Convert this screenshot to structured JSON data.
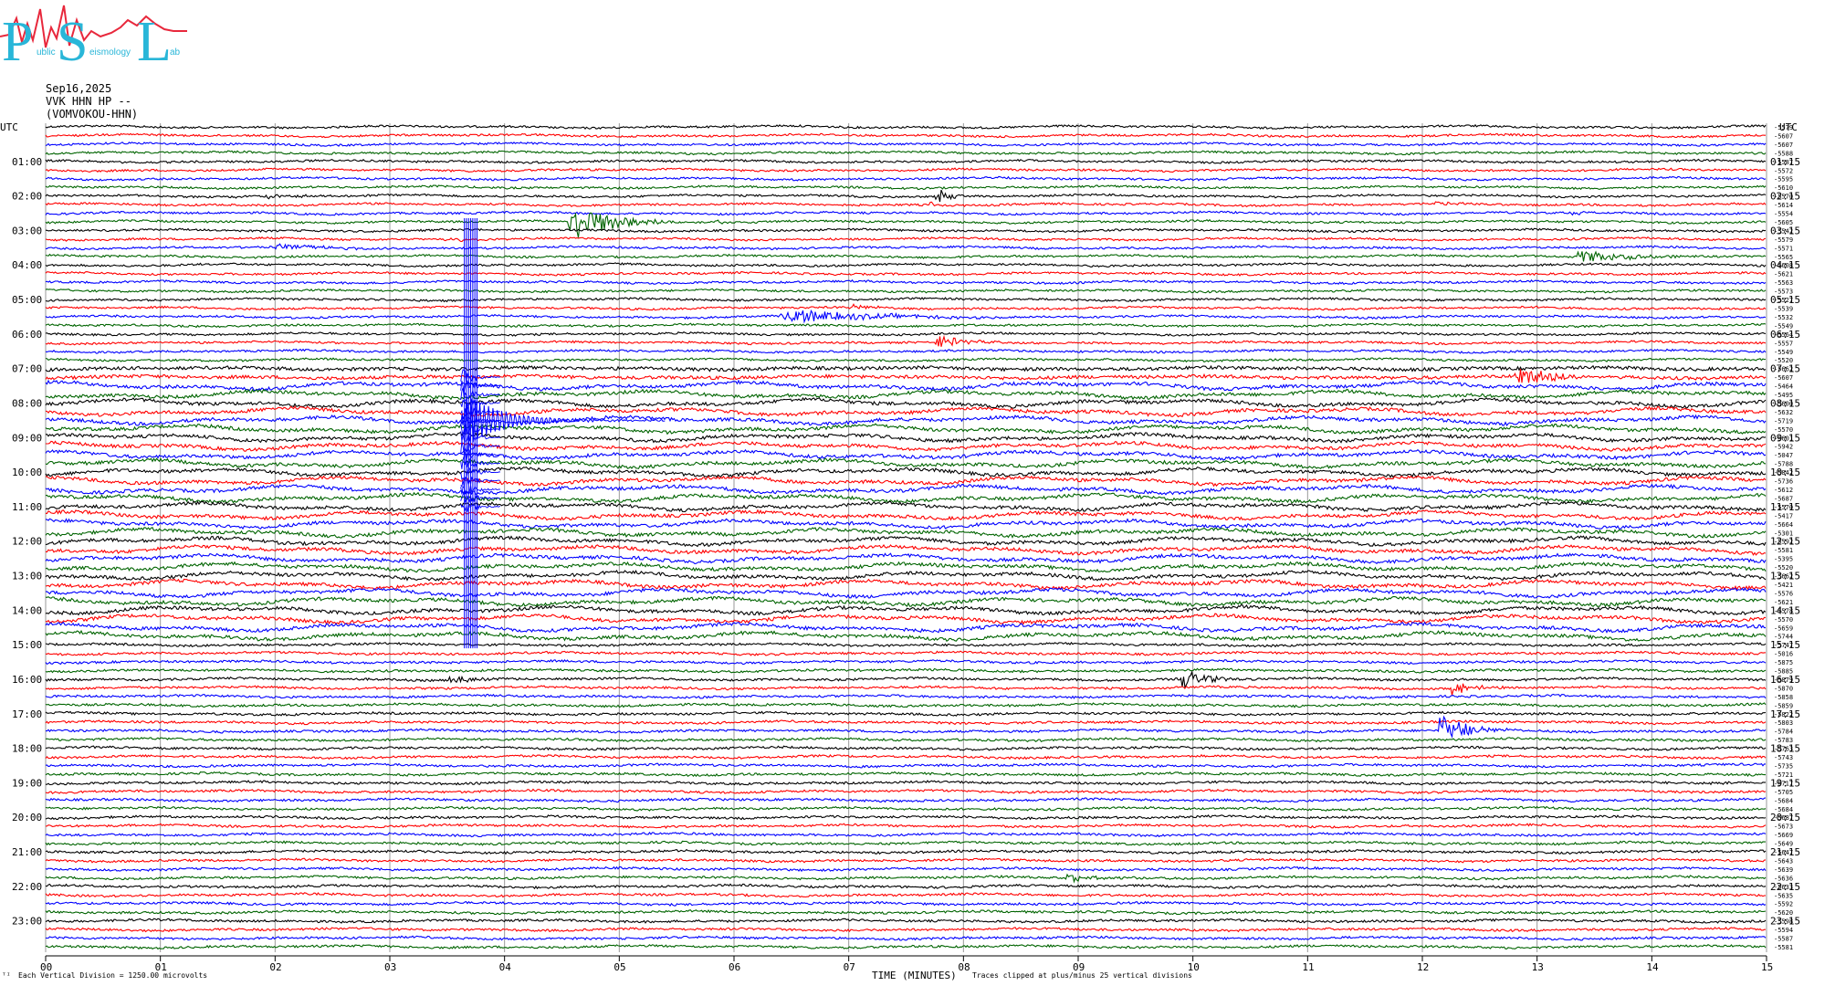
{
  "logo": {
    "big_letters": [
      "P",
      "S",
      "L"
    ],
    "small_text": [
      "ublic",
      "eismology",
      "ab"
    ],
    "colors": {
      "letters": "#29b6d8",
      "wave": "#e8283c"
    }
  },
  "header": {
    "date": "Sep16,2025",
    "channel": "VVK HHN HP --",
    "station": "(VOMVOKOU-HHN)"
  },
  "footer": {
    "corner_mark": "ᵀᴵ",
    "scale_note": "Each Vertical Division = 1250.00 microvolts",
    "xlabel": "TIME (MINUTES)",
    "clip_note": "Traces clipped at plus/minus 25 vertical divisions"
  },
  "chart_data": {
    "type": "line",
    "title": "",
    "xlabel": "TIME (MINUTES)",
    "ylabel": "",
    "xlim": [
      0,
      15
    ],
    "x_ticks": [
      "00",
      "01",
      "02",
      "03",
      "04",
      "05",
      "06",
      "07",
      "08",
      "09",
      "10",
      "11",
      "12",
      "13",
      "14",
      "15"
    ],
    "left_axis_title": "UTC",
    "right_axis_title": "UTC",
    "left_ticks": [
      "01:00",
      "02:00",
      "03:00",
      "04:00",
      "05:00",
      "06:00",
      "07:00",
      "08:00",
      "09:00",
      "10:00",
      "11:00",
      "12:00",
      "13:00",
      "14:00",
      "15:00",
      "16:00",
      "17:00",
      "18:00",
      "19:00",
      "20:00",
      "21:00",
      "22:00",
      "23:00"
    ],
    "right_ticks": [
      "01:15",
      "02:15",
      "03:15",
      "04:15",
      "05:15",
      "06:15",
      "07:15",
      "08:15",
      "09:15",
      "10:15",
      "11:15",
      "12:15",
      "13:15",
      "14:15",
      "15:15",
      "16:15",
      "17:15",
      "18:15",
      "19:15",
      "20:15",
      "21:15",
      "22:15",
      "23:15"
    ],
    "trace_colors": [
      "#000000",
      "#ff0000",
      "#0000ff",
      "#006400"
    ],
    "grid": true,
    "trace_count": 96,
    "trace_offsets": [
      "-5579",
      "-5607",
      "-5607",
      "-5588",
      "-5587",
      "-5572",
      "-5595",
      "-5610",
      "-5570",
      "-5614",
      "-5554",
      "-5605",
      "-5542",
      "-5579",
      "-5571",
      "-5565",
      "-5608",
      "-5621",
      "-5563",
      "-5573",
      "-5527",
      "-5539",
      "-5532",
      "-5549",
      "-5564",
      "-5557",
      "-5549",
      "-5520",
      "-5662",
      "-5607",
      "-5464",
      "-5495",
      "-5600",
      "-5632",
      "-5719",
      "-5570",
      "-5601",
      "-5942",
      "-5047",
      "-5788",
      "-5842",
      "-5736",
      "-5612",
      "-5687",
      "-5570",
      "-5417",
      "-5664",
      "-5301",
      "-5592",
      "-5581",
      "-5395",
      "-5520",
      "-5662",
      "-5421",
      "-5576",
      "-5621",
      "-5578",
      "-5570",
      "-5659",
      "-5744",
      "-5747",
      "-5016",
      "-5875",
      "-5885",
      "-5879",
      "-5870",
      "-5858",
      "-5859",
      "-5822",
      "-5803",
      "-5784",
      "-5783",
      "-5763",
      "-5743",
      "-5735",
      "-5721",
      "-5717",
      "-5705",
      "-5684",
      "-5684",
      "-5687",
      "-5673",
      "-5669",
      "-5649",
      "-5647",
      "-5643",
      "-5639",
      "-5636",
      "-5633",
      "-5635",
      "-5592",
      "-5620",
      "-5598",
      "-5594",
      "-5587",
      "-5581"
    ],
    "events": [
      {
        "trace": 8,
        "minute": 1.65,
        "amp": 3,
        "dur": 0.05
      },
      {
        "trace": 8,
        "minute": 1.9,
        "amp": 3,
        "dur": 0.4
      },
      {
        "trace": 8,
        "minute": 7.75,
        "amp": 18,
        "dur": 0.12
      },
      {
        "trace": 9,
        "minute": 7.7,
        "amp": 6,
        "dur": 0.06
      },
      {
        "trace": 9,
        "minute": 12.1,
        "amp": 3,
        "dur": 0.3
      },
      {
        "trace": 10,
        "minute": 13.3,
        "amp": 4,
        "dur": 0.1
      },
      {
        "trace": 11,
        "minute": 4.55,
        "amp": 26,
        "dur": 0.5
      },
      {
        "trace": 11,
        "minute": 5.8,
        "amp": 3,
        "dur": 0.3
      },
      {
        "trace": 13,
        "minute": 3.4,
        "amp": 3,
        "dur": 0.4
      },
      {
        "trace": 14,
        "minute": 2.0,
        "amp": 3,
        "dur": 0.8
      },
      {
        "trace": 15,
        "minute": 13.35,
        "amp": 8,
        "dur": 0.6
      },
      {
        "trace": 22,
        "minute": 6.4,
        "amp": 9,
        "dur": 1.0
      },
      {
        "trace": 21,
        "minute": 7.0,
        "amp": 3,
        "dur": 0.3
      },
      {
        "trace": 25,
        "minute": 7.75,
        "amp": 8,
        "dur": 0.3
      },
      {
        "trace": 29,
        "minute": 12.8,
        "amp": 16,
        "dur": 0.4
      },
      {
        "trace": 64,
        "minute": 3.5,
        "amp": 4,
        "dur": 0.4
      },
      {
        "trace": 64,
        "minute": 9.9,
        "amp": 12,
        "dur": 0.3
      },
      {
        "trace": 65,
        "minute": 12.25,
        "amp": 8,
        "dur": 0.25
      },
      {
        "trace": 70,
        "minute": 12.15,
        "amp": 22,
        "dur": 0.3
      },
      {
        "trace": 76,
        "minute": 14.5,
        "amp": 3,
        "dur": 0.3
      },
      {
        "trace": 87,
        "minute": 8.9,
        "amp": 4,
        "dur": 0.4
      }
    ],
    "large_event": {
      "minute": 3.65,
      "first_trace": 11,
      "last_trace": 60,
      "main_trace": 34,
      "color": "#0000ff"
    }
  }
}
